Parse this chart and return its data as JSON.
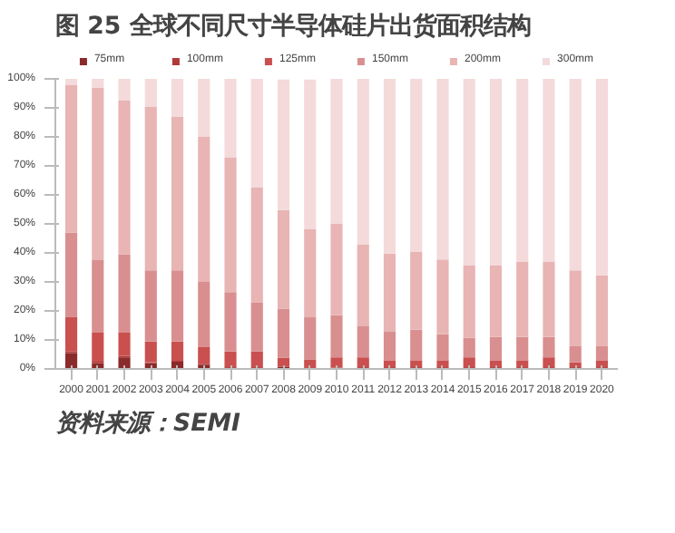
{
  "chart_data": {
    "type": "bar",
    "title": "图 25 全球不同尺寸半导体硅片出货面积结构",
    "stacked": true,
    "categories": [
      "2000",
      "2001",
      "2002",
      "2003",
      "2004",
      "2005",
      "2006",
      "2007",
      "2008",
      "2009",
      "2010",
      "2011",
      "2012",
      "2013",
      "2014",
      "2015",
      "2016",
      "2017",
      "2018",
      "2019",
      "2020"
    ],
    "series": [
      {
        "name": "75mm",
        "color": "#8b2a2a",
        "values": [
          5.5,
          2,
          4,
          2,
          2.5,
          1.5,
          0.3,
          0.3,
          0.8,
          null,
          0.3,
          0.3,
          0.3,
          0.3,
          0.3,
          0.3,
          0.3,
          0.3,
          0.3,
          0.3,
          0.3
        ]
      },
      {
        "name": "100mm",
        "color": "#b03a3a",
        "values": [
          0.5,
          0.5,
          0.5,
          0.3,
          0.3,
          0.3,
          0.3,
          0.3,
          null,
          0.2,
          0.2,
          0.3,
          0.3,
          0.3,
          0.3,
          0.3,
          0.3,
          0.3,
          0.3,
          0.3,
          0.3
        ]
      },
      {
        "name": "125mm",
        "color": "#c9504f",
        "values": [
          12,
          10,
          8,
          7.2,
          6.7,
          5.7,
          5.4,
          5.4,
          3,
          3.1,
          3.5,
          3.4,
          2.4,
          2.4,
          2.4,
          3.4,
          2.4,
          2.4,
          3.4,
          1.7,
          2.4
        ]
      },
      {
        "name": "150mm",
        "color": "#d98f8f",
        "values": [
          29,
          25,
          27,
          24.5,
          24.5,
          22.5,
          20.5,
          17,
          17,
          14.5,
          14.5,
          10.9,
          9.8,
          10.5,
          9,
          6.7,
          8,
          8,
          7,
          5.7,
          5
        ]
      },
      {
        "name": "200mm",
        "color": "#e8b4b4",
        "values": [
          51,
          59.5,
          53,
          56.5,
          53,
          50,
          46.5,
          39.5,
          34,
          30.5,
          31.5,
          27.9,
          27,
          27,
          25.7,
          24.9,
          24.6,
          26,
          26,
          26,
          24.3
        ]
      },
      {
        "name": "300mm",
        "color": "#f4dada",
        "values": [
          2,
          3,
          7.5,
          9.5,
          13,
          20,
          27,
          37.5,
          45,
          51.5,
          50,
          57.2,
          60.2,
          59.5,
          62.3,
          64.4,
          64.4,
          63,
          63,
          66,
          67.7
        ]
      }
    ],
    "ylim": [
      0,
      100
    ],
    "yticks": [
      {
        "value": 0,
        "label": "0%"
      },
      {
        "value": 10,
        "label": "10%"
      },
      {
        "value": 20,
        "label": "20%"
      },
      {
        "value": 30,
        "label": "30%"
      },
      {
        "value": 40,
        "label": "40%"
      },
      {
        "value": 50,
        "label": "50%"
      },
      {
        "value": 60,
        "label": "60%"
      },
      {
        "value": 70,
        "label": "70%"
      },
      {
        "value": 80,
        "label": "80%"
      },
      {
        "value": 90,
        "label": "90%"
      },
      {
        "value": 100,
        "label": "100%"
      }
    ],
    "grid": false,
    "legend": "top",
    "annotations": [
      "资料来源：SEMI"
    ]
  }
}
